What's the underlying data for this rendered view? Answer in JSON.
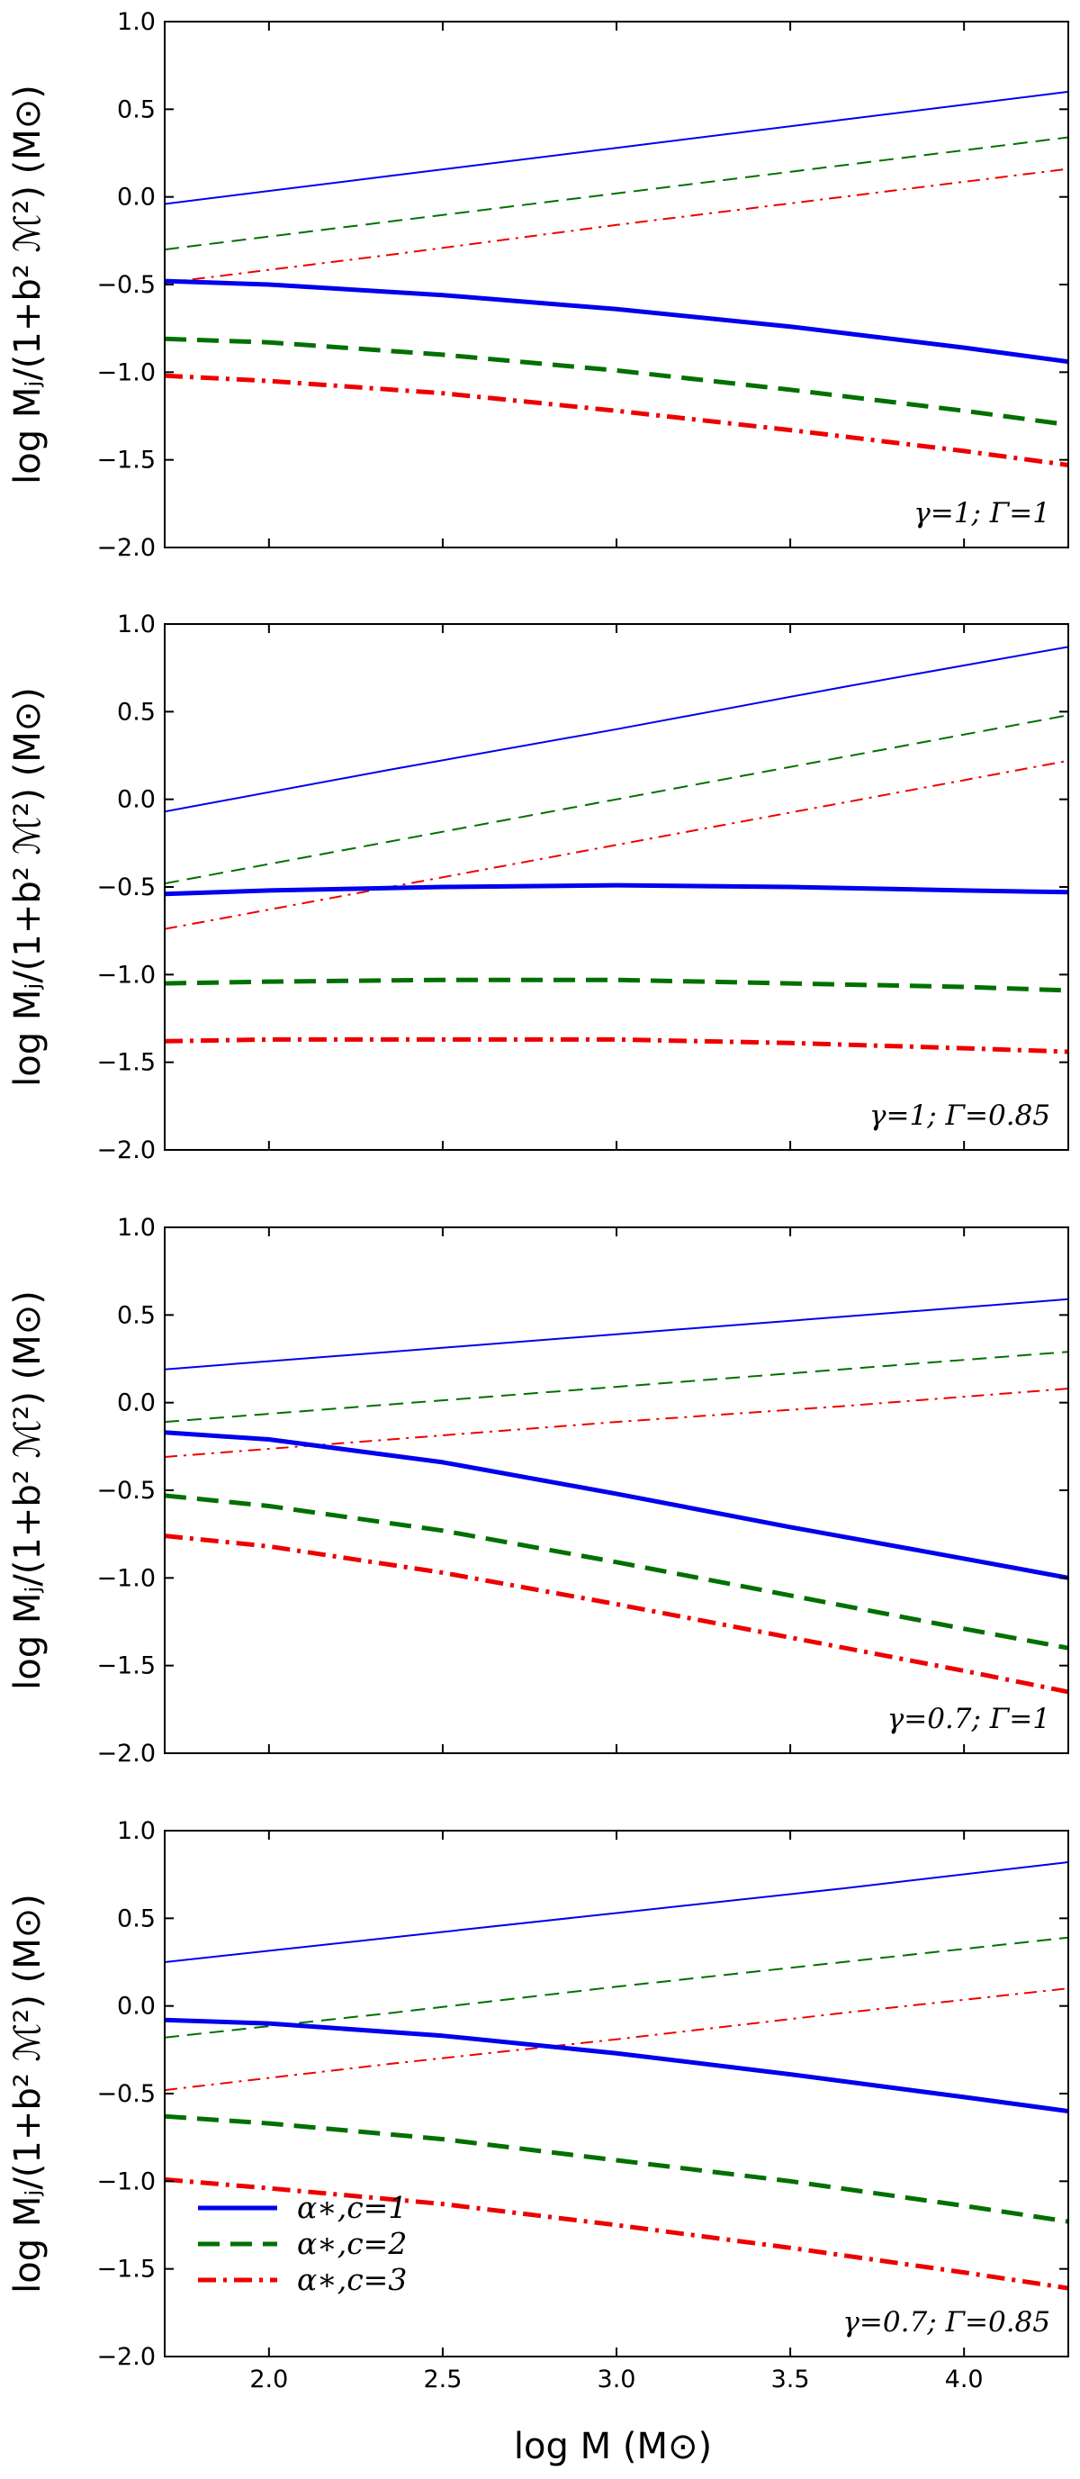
{
  "chart_data": {
    "type": "line",
    "xlabel": "log M (M⊙)",
    "ylabel": "log Mⱼ/(1+b² ℳ²) (M⊙)",
    "xlim": [
      1.7,
      4.3
    ],
    "ylim": [
      -2.0,
      1.0
    ],
    "xticks": [
      2.0,
      2.5,
      3.0,
      3.5,
      4.0
    ],
    "xtick_labels": [
      "2.0",
      "2.5",
      "3.0",
      "3.5",
      "4.0"
    ],
    "yticks": [
      1.0,
      0.5,
      0.0,
      -0.5,
      -1.0,
      -1.5,
      -2.0
    ],
    "ytick_labels": [
      "1.0",
      "0.5",
      "0.0",
      "−0.5",
      "−1.0",
      "−1.5",
      "−2.0"
    ],
    "legend": {
      "location": "lower-left (bottom panel)",
      "entries": [
        {
          "label": "α∗,c=1",
          "color": "#0000ee",
          "style": "solid"
        },
        {
          "label": "α∗,c=2",
          "color": "#007000",
          "style": "dashed"
        },
        {
          "label": "α∗,c=3",
          "color": "#ee0000",
          "style": "dashdot"
        }
      ]
    },
    "panels": [
      {
        "annotation": "γ=1; Γ=1",
        "series": [
          {
            "name": "α∗,c=1 thin",
            "color": "#0000ee",
            "style": "solid",
            "width": 2,
            "x": [
              1.7,
              2.35,
              3.0,
              3.65,
              4.3
            ],
            "y": [
              -0.04,
              0.12,
              0.28,
              0.44,
              0.6
            ]
          },
          {
            "name": "α∗,c=2 thin",
            "color": "#007000",
            "style": "dashed",
            "width": 2,
            "x": [
              1.7,
              2.35,
              3.0,
              3.65,
              4.3
            ],
            "y": [
              -0.3,
              -0.14,
              0.02,
              0.18,
              0.34
            ]
          },
          {
            "name": "α∗,c=3 thin",
            "color": "#ee0000",
            "style": "dashdot",
            "width": 2,
            "x": [
              1.7,
              2.35,
              3.0,
              3.65,
              4.3
            ],
            "y": [
              -0.49,
              -0.33,
              -0.16,
              0.0,
              0.16
            ]
          },
          {
            "name": "α∗,c=1",
            "color": "#0000ee",
            "style": "solid",
            "width": 5,
            "x": [
              1.7,
              2.0,
              2.5,
              3.0,
              3.5,
              4.0,
              4.3
            ],
            "y": [
              -0.48,
              -0.5,
              -0.56,
              -0.64,
              -0.74,
              -0.86,
              -0.94
            ]
          },
          {
            "name": "α∗,c=2",
            "color": "#007000",
            "style": "dashed",
            "width": 5,
            "x": [
              1.7,
              2.0,
              2.5,
              3.0,
              3.5,
              4.0,
              4.3
            ],
            "y": [
              -0.81,
              -0.83,
              -0.9,
              -0.99,
              -1.1,
              -1.22,
              -1.3
            ]
          },
          {
            "name": "α∗,c=3",
            "color": "#ee0000",
            "style": "dashdot",
            "width": 5,
            "x": [
              1.7,
              2.0,
              2.5,
              3.0,
              3.5,
              4.0,
              4.3
            ],
            "y": [
              -1.02,
              -1.05,
              -1.12,
              -1.22,
              -1.33,
              -1.45,
              -1.53
            ]
          }
        ]
      },
      {
        "annotation": "γ=1; Γ=0.85",
        "series": [
          {
            "name": "α∗,c=1 thin",
            "color": "#0000ee",
            "style": "solid",
            "width": 2,
            "x": [
              1.7,
              2.35,
              3.0,
              3.65,
              4.3
            ],
            "y": [
              -0.07,
              0.17,
              0.4,
              0.64,
              0.87
            ]
          },
          {
            "name": "α∗,c=2 thin",
            "color": "#007000",
            "style": "dashed",
            "width": 2,
            "x": [
              1.7,
              2.35,
              3.0,
              3.65,
              4.3
            ],
            "y": [
              -0.48,
              -0.24,
              0.0,
              0.24,
              0.48
            ]
          },
          {
            "name": "α∗,c=3 thin",
            "color": "#ee0000",
            "style": "dashdot",
            "width": 2,
            "x": [
              1.7,
              2.35,
              3.0,
              3.65,
              4.3
            ],
            "y": [
              -0.74,
              -0.5,
              -0.26,
              -0.02,
              0.22
            ]
          },
          {
            "name": "α∗,c=1",
            "color": "#0000ee",
            "style": "solid",
            "width": 5,
            "x": [
              1.7,
              2.0,
              2.5,
              3.0,
              3.5,
              4.0,
              4.3
            ],
            "y": [
              -0.54,
              -0.52,
              -0.5,
              -0.49,
              -0.5,
              -0.52,
              -0.53
            ]
          },
          {
            "name": "α∗,c=2",
            "color": "#007000",
            "style": "dashed",
            "width": 5,
            "x": [
              1.7,
              2.0,
              2.5,
              3.0,
              3.5,
              4.0,
              4.3
            ],
            "y": [
              -1.05,
              -1.04,
              -1.03,
              -1.03,
              -1.05,
              -1.07,
              -1.09
            ]
          },
          {
            "name": "α∗,c=3",
            "color": "#ee0000",
            "style": "dashdot",
            "width": 5,
            "x": [
              1.7,
              2.0,
              2.5,
              3.0,
              3.5,
              4.0,
              4.3
            ],
            "y": [
              -1.38,
              -1.37,
              -1.37,
              -1.37,
              -1.39,
              -1.42,
              -1.44
            ]
          }
        ]
      },
      {
        "annotation": "γ=0.7; Γ=1",
        "series": [
          {
            "name": "α∗,c=1 thin",
            "color": "#0000ee",
            "style": "solid",
            "width": 2,
            "x": [
              1.7,
              2.35,
              3.0,
              3.65,
              4.3
            ],
            "y": [
              0.19,
              0.29,
              0.39,
              0.49,
              0.59
            ]
          },
          {
            "name": "α∗,c=2 thin",
            "color": "#007000",
            "style": "dashed",
            "width": 2,
            "x": [
              1.7,
              2.35,
              3.0,
              3.65,
              4.3
            ],
            "y": [
              -0.11,
              -0.01,
              0.09,
              0.19,
              0.29
            ]
          },
          {
            "name": "α∗,c=3 thin",
            "color": "#ee0000",
            "style": "dashdot",
            "width": 2,
            "x": [
              1.7,
              2.35,
              3.0,
              3.65,
              4.3
            ],
            "y": [
              -0.31,
              -0.21,
              -0.11,
              -0.02,
              0.08
            ]
          },
          {
            "name": "α∗,c=1",
            "color": "#0000ee",
            "style": "solid",
            "width": 5,
            "x": [
              1.7,
              2.0,
              2.5,
              3.0,
              3.5,
              4.0,
              4.3
            ],
            "y": [
              -0.17,
              -0.21,
              -0.34,
              -0.52,
              -0.71,
              -0.89,
              -1.0
            ]
          },
          {
            "name": "α∗,c=2",
            "color": "#007000",
            "style": "dashed",
            "width": 5,
            "x": [
              1.7,
              2.0,
              2.5,
              3.0,
              3.5,
              4.0,
              4.3
            ],
            "y": [
              -0.53,
              -0.59,
              -0.73,
              -0.91,
              -1.1,
              -1.29,
              -1.4
            ]
          },
          {
            "name": "α∗,c=3",
            "color": "#ee0000",
            "style": "dashdot",
            "width": 5,
            "x": [
              1.7,
              2.0,
              2.5,
              3.0,
              3.5,
              4.0,
              4.3
            ],
            "y": [
              -0.76,
              -0.82,
              -0.97,
              -1.15,
              -1.34,
              -1.53,
              -1.65
            ]
          }
        ]
      },
      {
        "annotation": "γ=0.7; Γ=0.85",
        "series": [
          {
            "name": "α∗,c=1 thin",
            "color": "#0000ee",
            "style": "solid",
            "width": 2,
            "x": [
              1.7,
              2.35,
              3.0,
              3.65,
              4.3
            ],
            "y": [
              0.25,
              0.39,
              0.53,
              0.67,
              0.82
            ]
          },
          {
            "name": "α∗,c=2 thin",
            "color": "#007000",
            "style": "dashed",
            "width": 2,
            "x": [
              1.7,
              2.35,
              3.0,
              3.65,
              4.3
            ],
            "y": [
              -0.18,
              -0.04,
              0.11,
              0.25,
              0.39
            ]
          },
          {
            "name": "α∗,c=3 thin",
            "color": "#ee0000",
            "style": "dashdot",
            "width": 2,
            "x": [
              1.7,
              2.35,
              3.0,
              3.65,
              4.3
            ],
            "y": [
              -0.48,
              -0.33,
              -0.19,
              -0.04,
              0.1
            ]
          },
          {
            "name": "α∗,c=1",
            "color": "#0000ee",
            "style": "solid",
            "width": 5,
            "x": [
              1.7,
              2.0,
              2.5,
              3.0,
              3.5,
              4.0,
              4.3
            ],
            "y": [
              -0.08,
              -0.1,
              -0.17,
              -0.27,
              -0.39,
              -0.52,
              -0.6
            ]
          },
          {
            "name": "α∗,c=2",
            "color": "#007000",
            "style": "dashed",
            "width": 5,
            "x": [
              1.7,
              2.0,
              2.5,
              3.0,
              3.5,
              4.0,
              4.3
            ],
            "y": [
              -0.63,
              -0.67,
              -0.76,
              -0.88,
              -1.0,
              -1.14,
              -1.23
            ]
          },
          {
            "name": "α∗,c=3",
            "color": "#ee0000",
            "style": "dashdot",
            "width": 5,
            "x": [
              1.7,
              2.0,
              2.5,
              3.0,
              3.5,
              4.0,
              4.3
            ],
            "y": [
              -0.99,
              -1.04,
              -1.13,
              -1.25,
              -1.38,
              -1.52,
              -1.61
            ]
          }
        ]
      }
    ]
  }
}
